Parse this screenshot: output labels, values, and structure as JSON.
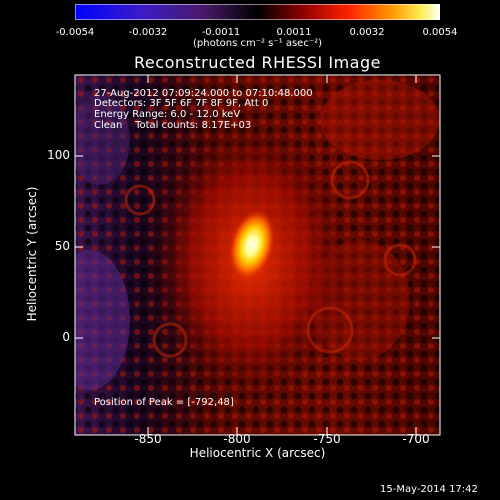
{
  "colorbar": {
    "ticks": [
      "-0.0054",
      "-0.0032",
      "-0.0011",
      "0.0011",
      "0.0032",
      "0.0054"
    ],
    "units": "(photons cm⁻² s⁻¹ asec⁻²)"
  },
  "plot": {
    "title": "Reconstructed RHESSI Image",
    "info_lines": [
      "27-Aug-2012 07:09:24.000 to 07:10:48.000",
      "Detectors: 3F 5F 6F 7F 8F 9F, Att 0",
      "Energy Range: 6.0 - 12.0 keV",
      "Clean    Total counts: 8.17E+03"
    ],
    "peak_text": "Position of Peak = [-792,48]",
    "xlabel": "Heliocentric X (arcsec)",
    "ylabel": "Heliocentric Y (arcsec)",
    "xticks": [
      "-850",
      "-800",
      "-750",
      "-700"
    ],
    "yticks": [
      "100",
      "50",
      "0"
    ]
  },
  "image_data": {
    "xlim": [
      -886,
      -693
    ],
    "ylim": [
      -40,
      150
    ],
    "peak": [
      -792,
      48
    ],
    "colormap": "heat (blue-purple-black-red-orange-yellow-white)"
  },
  "footer": {
    "timestamp": "15-May-2014 17:42"
  }
}
